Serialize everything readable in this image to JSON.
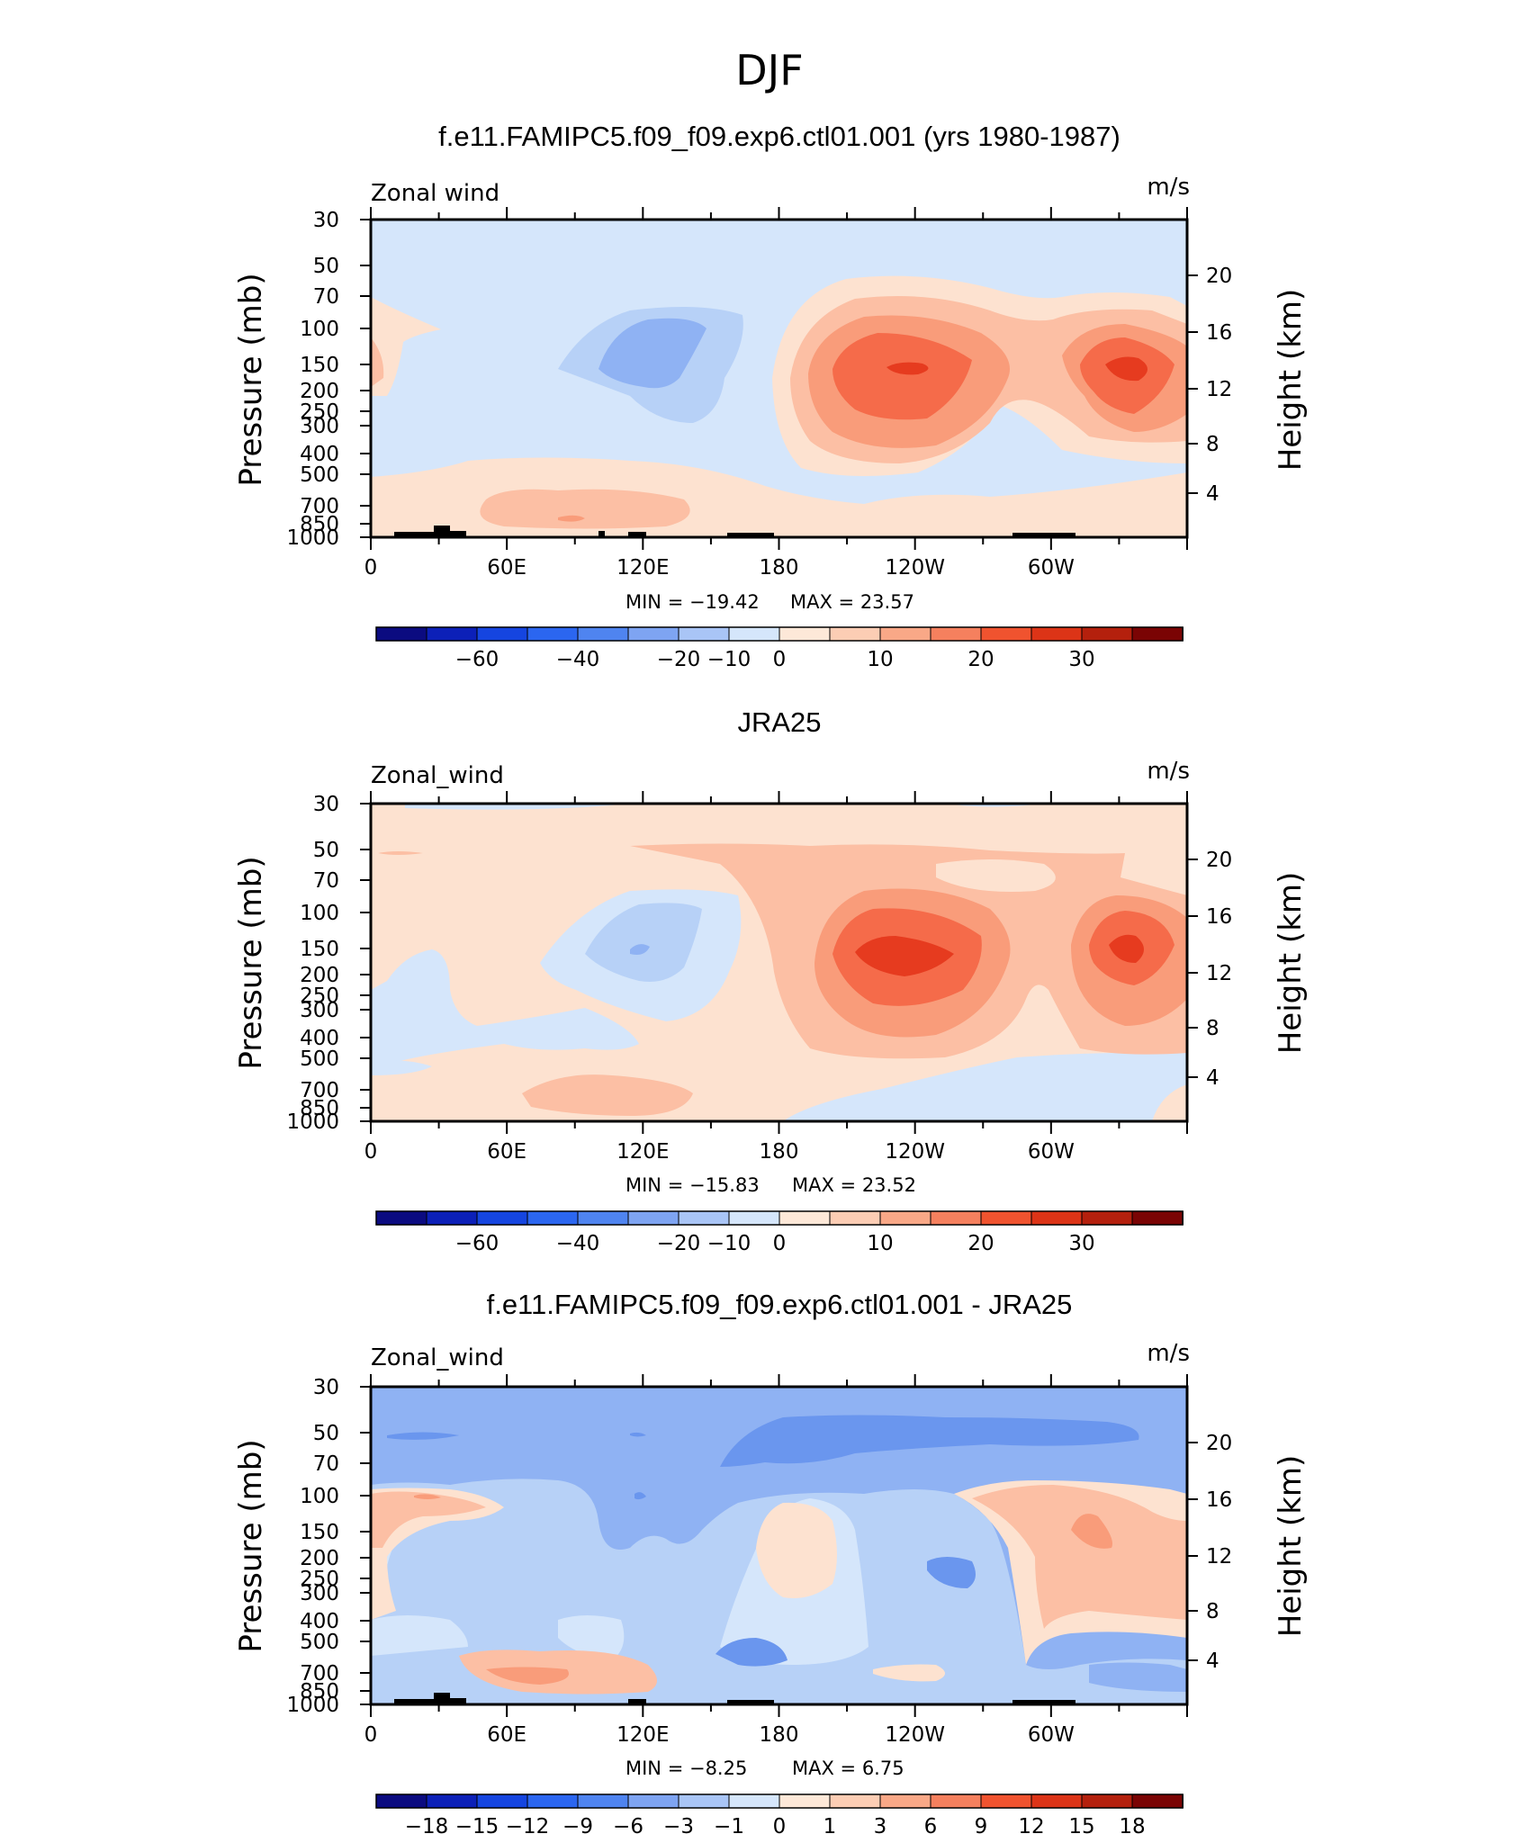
{
  "figure": {
    "title": "DJF"
  },
  "chart_data": [
    {
      "type": "heatmap",
      "title": "f.e11.FAMIPC5.f09_f09.exp6.ctl01.001 (yrs 1980-1987)",
      "variable": "Zonal wind",
      "units": "m/s",
      "ylabel": "Pressure (mb)",
      "ylabel_right": "Height (km)",
      "x_ticks": [
        "0",
        "60E",
        "120E",
        "180",
        "120W",
        "60W"
      ],
      "y_ticks": [
        "30",
        "50",
        "70",
        "100",
        "150",
        "200",
        "250",
        "300",
        "400",
        "500",
        "700",
        "850",
        "1000"
      ],
      "y_ticks_right": [
        "20",
        "16",
        "12",
        "8",
        "4"
      ],
      "min_label": "MIN = −19.42",
      "max_label": "MAX = 23.57",
      "colorbar_labels": [
        "−60",
        "−40",
        "−20",
        "−10",
        "0",
        "10",
        "20",
        "30"
      ],
      "features": [
        {
          "lon": 110,
          "p": 150,
          "value": -15
        },
        {
          "lon": 232,
          "p": 150,
          "value": 23.57
        },
        {
          "lon": 330,
          "p": 150,
          "value": 22
        },
        {
          "lon": 5,
          "p": 150,
          "value": 5
        },
        {
          "lon": 90,
          "p": 700,
          "value": 8
        }
      ]
    },
    {
      "type": "heatmap",
      "title": "JRA25",
      "variable": "Zonal_wind",
      "units": "m/s",
      "ylabel": "Pressure (mb)",
      "ylabel_right": "Height (km)",
      "x_ticks": [
        "0",
        "60E",
        "120E",
        "180",
        "120W",
        "60W"
      ],
      "y_ticks": [
        "30",
        "50",
        "70",
        "100",
        "150",
        "200",
        "250",
        "300",
        "400",
        "500",
        "700",
        "850",
        "1000"
      ],
      "y_ticks_right": [
        "20",
        "16",
        "12",
        "8",
        "4"
      ],
      "min_label": "MIN = −15.83",
      "max_label": "MAX = 23.52",
      "colorbar_labels": [
        "−60",
        "−40",
        "−20",
        "−10",
        "0",
        "10",
        "20",
        "30"
      ],
      "features": [
        {
          "lon": 115,
          "p": 150,
          "value": -12
        },
        {
          "lon": 232,
          "p": 150,
          "value": 23.52
        },
        {
          "lon": 330,
          "p": 150,
          "value": 20
        },
        {
          "lon": 100,
          "p": 700,
          "value": 6
        }
      ]
    },
    {
      "type": "heatmap",
      "title": "f.e11.FAMIPC5.f09_f09.exp6.ctl01.001 - JRA25",
      "variable": "Zonal_wind",
      "units": "m/s",
      "ylabel": "Pressure (mb)",
      "ylabel_right": "Height (km)",
      "x_ticks": [
        "0",
        "60E",
        "120E",
        "180",
        "120W",
        "60W"
      ],
      "y_ticks": [
        "30",
        "50",
        "70",
        "100",
        "150",
        "200",
        "250",
        "300",
        "400",
        "500",
        "700",
        "850",
        "1000"
      ],
      "y_ticks_right": [
        "20",
        "16",
        "12",
        "8",
        "4"
      ],
      "min_label": "MIN = −8.25",
      "max_label": "MAX = 6.75",
      "colorbar_labels": [
        "−18",
        "−15",
        "−12",
        "−9",
        "−6",
        "−3",
        "−1",
        "0",
        "1",
        "3",
        "6",
        "9",
        "12",
        "15",
        "18"
      ],
      "features": [
        {
          "lon": 200,
          "p": 50,
          "value": -8.25
        },
        {
          "lon": 310,
          "p": 150,
          "value": 6.75
        },
        {
          "lon": 180,
          "p": 200,
          "value": 3
        },
        {
          "lon": 100,
          "p": 700,
          "value": 4
        }
      ]
    }
  ]
}
